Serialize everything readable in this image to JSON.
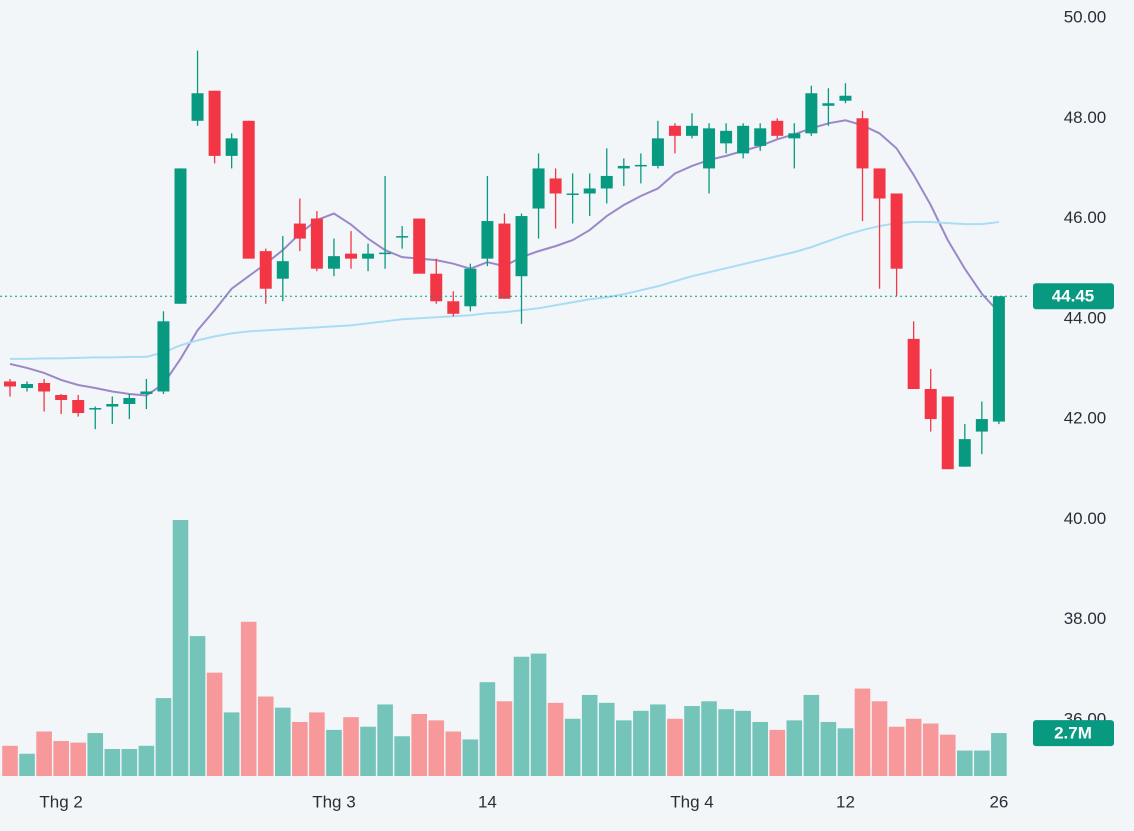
{
  "chart_data": {
    "type": "candlestick",
    "categories": [
      null,
      null,
      null,
      "Thg 2",
      null,
      null,
      null,
      null,
      null,
      null,
      null,
      null,
      null,
      null,
      null,
      null,
      null,
      null,
      null,
      "Thg 3",
      null,
      null,
      null,
      null,
      null,
      null,
      null,
      null,
      "14",
      null,
      null,
      null,
      null,
      null,
      null,
      null,
      null,
      null,
      null,
      null,
      "Thg 4",
      null,
      null,
      null,
      null,
      null,
      null,
      null,
      null,
      "12",
      null,
      null,
      null,
      null,
      null,
      null,
      null,
      null,
      "26"
    ],
    "open": [
      42.75,
      42.62,
      42.72,
      42.48,
      42.38,
      42.2,
      42.25,
      42.3,
      42.5,
      42.55,
      44.3,
      47.95,
      48.55,
      47.25,
      47.95,
      45.35,
      44.8,
      45.9,
      46.0,
      45.0,
      45.3,
      45.2,
      45.3,
      45.62,
      46.0,
      44.9,
      44.35,
      44.25,
      45.2,
      45.9,
      44.85,
      46.2,
      46.8,
      46.48,
      46.5,
      46.6,
      47.0,
      47.05,
      47.05,
      47.85,
      47.65,
      47.0,
      47.5,
      47.3,
      47.45,
      47.95,
      47.6,
      47.7,
      48.25,
      48.35,
      48.0,
      47.0,
      46.5,
      43.6,
      42.6,
      42.45,
      41.05,
      41.75,
      41.95
    ],
    "high": [
      42.8,
      42.75,
      42.8,
      42.5,
      42.48,
      42.25,
      42.45,
      42.5,
      42.8,
      44.15,
      47.0,
      49.35,
      48.55,
      47.7,
      47.95,
      45.4,
      45.65,
      46.4,
      46.15,
      45.6,
      45.75,
      45.5,
      46.85,
      45.85,
      46.0,
      45.2,
      44.55,
      45.1,
      46.85,
      46.1,
      46.1,
      47.3,
      47.0,
      46.9,
      46.9,
      47.4,
      47.2,
      47.3,
      47.95,
      47.9,
      48.1,
      47.9,
      47.9,
      47.9,
      47.9,
      48.0,
      47.9,
      48.65,
      48.6,
      48.7,
      48.15,
      47.0,
      46.5,
      43.95,
      43.0,
      42.45,
      41.9,
      42.35,
      44.45
    ],
    "low": [
      42.45,
      42.55,
      42.15,
      42.1,
      42.05,
      41.8,
      41.9,
      42.0,
      42.2,
      42.5,
      44.3,
      47.85,
      47.1,
      47.0,
      45.2,
      44.3,
      44.35,
      45.35,
      44.95,
      44.85,
      45.0,
      44.95,
      45.0,
      45.4,
      44.9,
      44.3,
      44.05,
      44.15,
      45.05,
      44.4,
      43.9,
      45.6,
      45.8,
      45.9,
      46.05,
      46.3,
      46.65,
      46.7,
      47.0,
      47.3,
      47.6,
      46.5,
      47.3,
      47.2,
      47.35,
      47.6,
      47.0,
      47.65,
      47.85,
      48.3,
      45.95,
      44.6,
      44.45,
      42.6,
      41.75,
      41.0,
      41.05,
      41.3,
      41.9
    ],
    "close": [
      42.65,
      42.7,
      42.55,
      42.38,
      42.12,
      42.22,
      42.3,
      42.42,
      42.55,
      43.95,
      47.0,
      48.5,
      47.25,
      47.6,
      45.2,
      44.6,
      45.15,
      45.6,
      45.0,
      45.25,
      45.2,
      45.3,
      45.32,
      45.65,
      44.9,
      44.35,
      44.1,
      45.0,
      45.95,
      44.4,
      46.05,
      47.0,
      46.5,
      46.5,
      46.6,
      46.85,
      47.05,
      47.07,
      47.6,
      47.65,
      47.85,
      47.8,
      47.75,
      47.85,
      47.8,
      47.65,
      47.7,
      48.5,
      48.3,
      48.45,
      47.0,
      46.4,
      45.0,
      42.6,
      42.0,
      41.0,
      41.6,
      42.0,
      44.45
    ],
    "volume": {
      "values": [
        1.9,
        1.4,
        2.8,
        2.2,
        2.1,
        2.7,
        1.7,
        1.7,
        1.9,
        4.9,
        16.1,
        8.8,
        6.5,
        4.0,
        9.7,
        5.0,
        4.3,
        3.4,
        4.0,
        2.9,
        3.7,
        3.1,
        4.5,
        2.5,
        3.9,
        3.5,
        2.8,
        2.3,
        5.9,
        4.7,
        7.5,
        7.7,
        4.6,
        3.6,
        5.1,
        4.6,
        3.5,
        4.1,
        4.5,
        3.6,
        4.4,
        4.7,
        4.2,
        4.1,
        3.4,
        2.9,
        3.5,
        5.1,
        3.4,
        3.0,
        5.5,
        4.7,
        3.1,
        3.6,
        3.3,
        2.6,
        1.6,
        1.6,
        2.7
      ],
      "value_labels": [
        null,
        null,
        null,
        null,
        null,
        null,
        null,
        null,
        null,
        null,
        null,
        null,
        null,
        null,
        null,
        null,
        null,
        null,
        null,
        null,
        null,
        null,
        null,
        null,
        null,
        null,
        null,
        null,
        null,
        null,
        null,
        null,
        null,
        null,
        null,
        null,
        null,
        null,
        null,
        null,
        null,
        null,
        null,
        null,
        null,
        null,
        null,
        null,
        null,
        null,
        null,
        null,
        null,
        null,
        null,
        null,
        null,
        null,
        "2.7M"
      ],
      "up_color": "#74c4b9",
      "down_color": "#f7999a"
    },
    "lines": [
      {
        "color": "#9b88c8",
        "values": [
          43.1,
          43.02,
          42.92,
          42.78,
          42.68,
          42.62,
          42.55,
          42.5,
          42.47,
          42.7,
          43.2,
          43.77,
          44.17,
          44.6,
          44.85,
          45.1,
          45.37,
          45.7,
          45.97,
          46.1,
          45.88,
          45.6,
          45.37,
          45.23,
          45.2,
          45.17,
          45.1,
          45.0,
          45.13,
          45.05,
          45.23,
          45.35,
          45.45,
          45.57,
          45.77,
          46.05,
          46.27,
          46.45,
          46.6,
          46.9,
          47.05,
          47.17,
          47.25,
          47.35,
          47.45,
          47.58,
          47.68,
          47.8,
          47.9,
          47.96,
          47.86,
          47.7,
          47.4,
          46.87,
          46.27,
          45.57,
          45.0,
          44.5,
          44.13
        ]
      },
      {
        "color": "#a9ddf3",
        "values": [
          43.2,
          43.2,
          43.21,
          43.21,
          43.22,
          43.23,
          43.23,
          43.24,
          43.24,
          43.33,
          43.47,
          43.57,
          43.65,
          43.71,
          43.75,
          43.77,
          43.79,
          43.81,
          43.83,
          43.85,
          43.87,
          43.91,
          43.95,
          43.99,
          44.01,
          44.03,
          44.05,
          44.07,
          44.11,
          44.13,
          44.17,
          44.21,
          44.27,
          44.33,
          44.39,
          44.43,
          44.49,
          44.57,
          44.65,
          44.75,
          44.85,
          44.93,
          45.01,
          45.09,
          45.17,
          45.25,
          45.33,
          45.43,
          45.55,
          45.67,
          45.77,
          45.85,
          45.91,
          45.93,
          45.93,
          45.91,
          45.89,
          45.89,
          45.93
        ]
      }
    ],
    "up_color": "#089981",
    "down_color": "#f23645",
    "ylim": [
      34.6,
      50.36
    ],
    "yticks": [
      {
        "value": 36,
        "label": "36.00"
      },
      {
        "value": 38,
        "label": "38.00"
      },
      {
        "value": 40,
        "label": "40.00"
      },
      {
        "value": 42,
        "label": "42.00"
      },
      {
        "value": 44,
        "label": "44.00"
      },
      {
        "value": 46,
        "label": "46.00"
      },
      {
        "value": 48,
        "label": "48.00"
      },
      {
        "value": 50,
        "label": "50.00"
      }
    ]
  }
}
